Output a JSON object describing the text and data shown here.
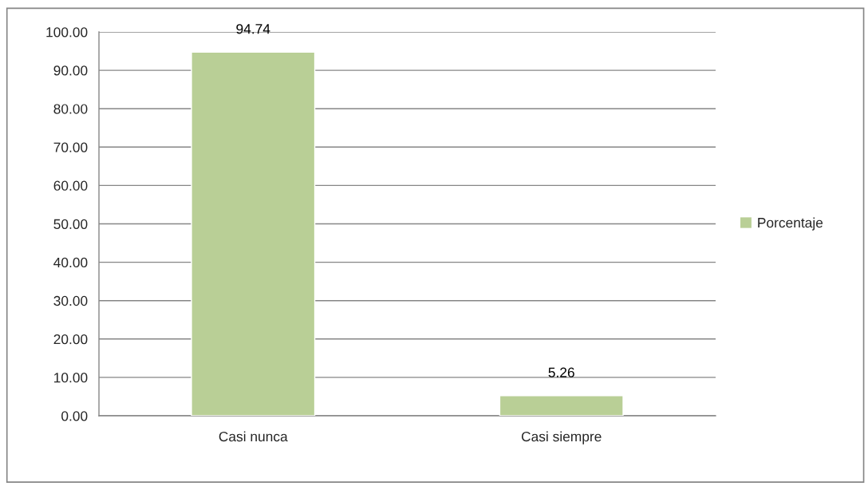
{
  "chart_data": {
    "type": "bar",
    "categories": [
      "Casi nunca",
      "Casi siempre"
    ],
    "series": [
      {
        "name": "Porcentaje",
        "color": "#b9cf96",
        "values": [
          94.74,
          5.26
        ]
      }
    ],
    "ylim": [
      0,
      100
    ],
    "yticks": [
      {
        "value": 0,
        "label": "0.00"
      },
      {
        "value": 10,
        "label": "10.00"
      },
      {
        "value": 20,
        "label": "20.00"
      },
      {
        "value": 30,
        "label": "30.00"
      },
      {
        "value": 40,
        "label": "40.00"
      },
      {
        "value": 50,
        "label": "50.00"
      },
      {
        "value": 60,
        "label": "60.00"
      },
      {
        "value": 70,
        "label": "70.00"
      },
      {
        "value": 80,
        "label": "80.00"
      },
      {
        "value": 90,
        "label": "90.00"
      },
      {
        "value": 100,
        "label": "100.00"
      }
    ],
    "grid": "y",
    "legend": "right",
    "data_labels": true
  }
}
